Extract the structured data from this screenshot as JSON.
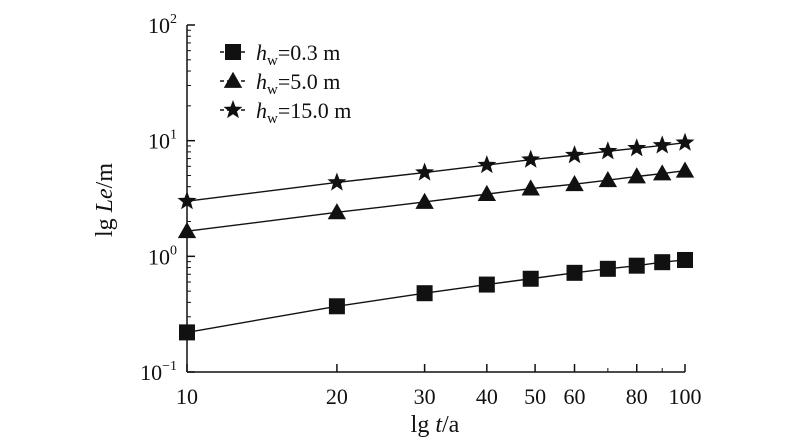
{
  "chart_data": {
    "type": "line",
    "xscale": "log",
    "yscale": "log",
    "xlim": [
      10,
      100
    ],
    "ylim": [
      0.1,
      100
    ],
    "xlabel": {
      "prefix": "lg ",
      "var": "t",
      "unit": "/a"
    },
    "ylabel": {
      "prefix": "lg ",
      "var": "Le",
      "unit": "/m"
    },
    "xticks": [
      10,
      20,
      30,
      40,
      50,
      60,
      80,
      100
    ],
    "xtick_labels": [
      "10",
      "20",
      "30",
      "40",
      "50",
      "60",
      "80",
      "100"
    ],
    "yticks": [
      0.1,
      1,
      10,
      100
    ],
    "ytick_labels": [
      {
        "base": "10",
        "exp": "−1"
      },
      {
        "base": "10",
        "exp": "0"
      },
      {
        "base": "10",
        "exp": "1"
      },
      {
        "base": "10",
        "exp": "2"
      }
    ],
    "legend_position": "top-left",
    "series": [
      {
        "name": "hw=0.3 m",
        "label_parts": {
          "sym": "h",
          "sub": "w",
          "rest": "=0.3 m"
        },
        "marker": "square",
        "x": [
          10,
          20,
          30,
          40,
          49,
          60,
          70,
          80,
          90,
          100
        ],
        "y": [
          0.22,
          0.37,
          0.48,
          0.57,
          0.64,
          0.72,
          0.78,
          0.83,
          0.89,
          0.93
        ]
      },
      {
        "name": "hw=5.0 m",
        "label_parts": {
          "sym": "h",
          "sub": "w",
          "rest": "=5.0 m"
        },
        "marker": "triangle",
        "x": [
          10,
          20,
          30,
          40,
          49,
          60,
          70,
          80,
          90,
          100
        ],
        "y": [
          1.65,
          2.4,
          2.95,
          3.45,
          3.85,
          4.2,
          4.55,
          4.9,
          5.2,
          5.5
        ]
      },
      {
        "name": "hw=15.0 m",
        "label_parts": {
          "sym": "h",
          "sub": "w",
          "rest": "=15.0 m"
        },
        "marker": "star",
        "x": [
          10,
          20,
          30,
          40,
          49,
          60,
          70,
          80,
          90,
          100
        ],
        "y": [
          3.0,
          4.35,
          5.3,
          6.15,
          6.85,
          7.5,
          8.1,
          8.6,
          9.1,
          9.6
        ]
      }
    ]
  }
}
